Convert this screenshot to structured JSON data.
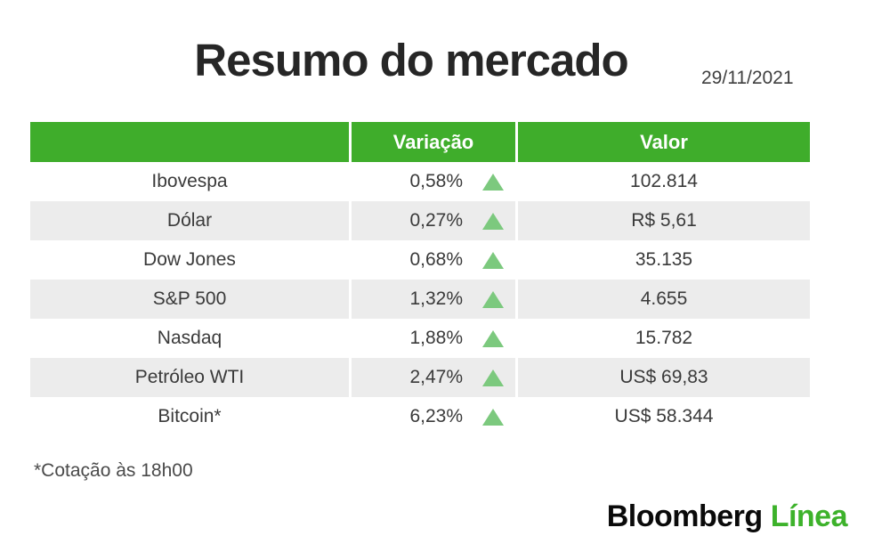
{
  "title": "Resumo do mercado",
  "date": "29/11/2021",
  "chart_data": {
    "type": "table",
    "title": "Resumo do mercado",
    "date": "29/11/2021",
    "columns": [
      "",
      "Variação",
      "Valor"
    ],
    "rows": [
      {
        "name": "Ibovespa",
        "variation": "0,58%",
        "direction": "up",
        "value": "102.814"
      },
      {
        "name": "Dólar",
        "variation": "0,27%",
        "direction": "up",
        "value": "R$ 5,61"
      },
      {
        "name": "Dow Jones",
        "variation": "0,68%",
        "direction": "up",
        "value": "35.135"
      },
      {
        "name": "S&P 500",
        "variation": "1,32%",
        "direction": "up",
        "value": "4.655"
      },
      {
        "name": "Nasdaq",
        "variation": "1,88%",
        "direction": "up",
        "value": "15.782"
      },
      {
        "name": "Petróleo WTI",
        "variation": "2,47%",
        "direction": "up",
        "value": "US$ 69,83"
      },
      {
        "name": "Bitcoin*",
        "variation": "6,23%",
        "direction": "up",
        "value": "US$ 58.344"
      }
    ],
    "variation_percent_values": [
      0.58,
      0.27,
      0.68,
      1.32,
      1.88,
      2.47,
      6.23
    ],
    "legend_position": "none",
    "grid": false
  },
  "table_headers": {
    "variation": "Variação",
    "value": "Valor"
  },
  "footnote": "*Cotação às 18h00",
  "logo": {
    "black_part": "Bloomberg",
    "green_part": "Línea"
  },
  "icons": {
    "up_triangle": "up-triangle-icon"
  },
  "colors": {
    "header_green": "#3fad2b",
    "triangle_green": "#7cc97e",
    "row_gray": "#ececec",
    "row_white": "#ffffff",
    "text_dark": "#3a3a3a",
    "logo_green": "#3db22b",
    "logo_black": "#0a0a0a"
  }
}
